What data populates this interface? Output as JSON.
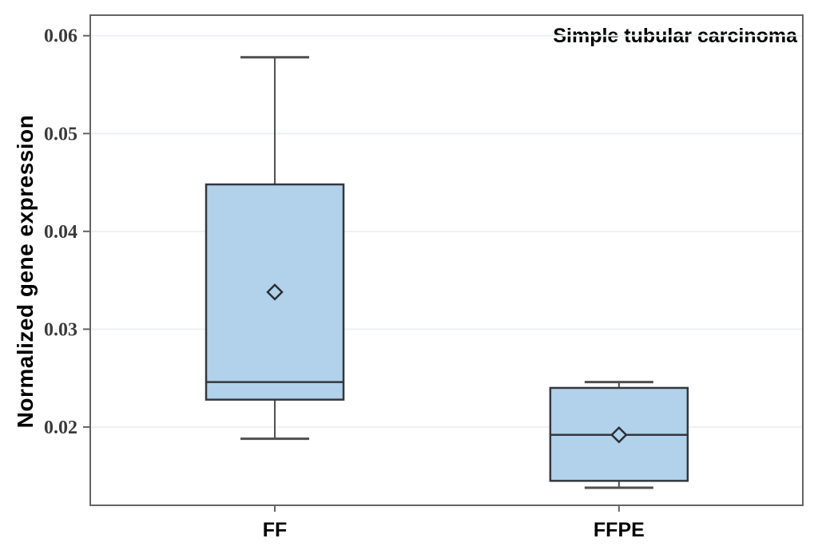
{
  "chart_data": {
    "type": "boxplot",
    "title": "Simple tubular carcinoma",
    "ylabel": "Normalized gene expression",
    "xlabel": "",
    "ylim": [
      0.012,
      0.0621
    ],
    "yticks": [
      0.02,
      0.03,
      0.04,
      0.05,
      0.06
    ],
    "ytick_labels": [
      "0.02",
      "0.03",
      "0.04",
      "0.05",
      "0.06"
    ],
    "grid": "horizontal-light",
    "legend": "none",
    "categories": [
      "FF",
      "FFPE"
    ],
    "series": [
      {
        "name": "FF",
        "whisker_low": 0.0188,
        "q1": 0.0228,
        "median": 0.0246,
        "q3": 0.0448,
        "whisker_high": 0.0578,
        "mean": 0.0338
      },
      {
        "name": "FFPE",
        "whisker_low": 0.0138,
        "q1": 0.0145,
        "median": 0.0192,
        "q3": 0.024,
        "whisker_high": 0.0246,
        "mean": 0.0192
      }
    ],
    "colors": {
      "box_fill": "#b2d1ea",
      "box_border": "#33373d",
      "median_line": "#33373d",
      "whisker": "#4f4f4f",
      "frame": "#646464",
      "gridline": "#eef1f3",
      "mean_marker": "#2b2f36",
      "tick_text": "#3b3b3b",
      "text": "#000000"
    }
  }
}
